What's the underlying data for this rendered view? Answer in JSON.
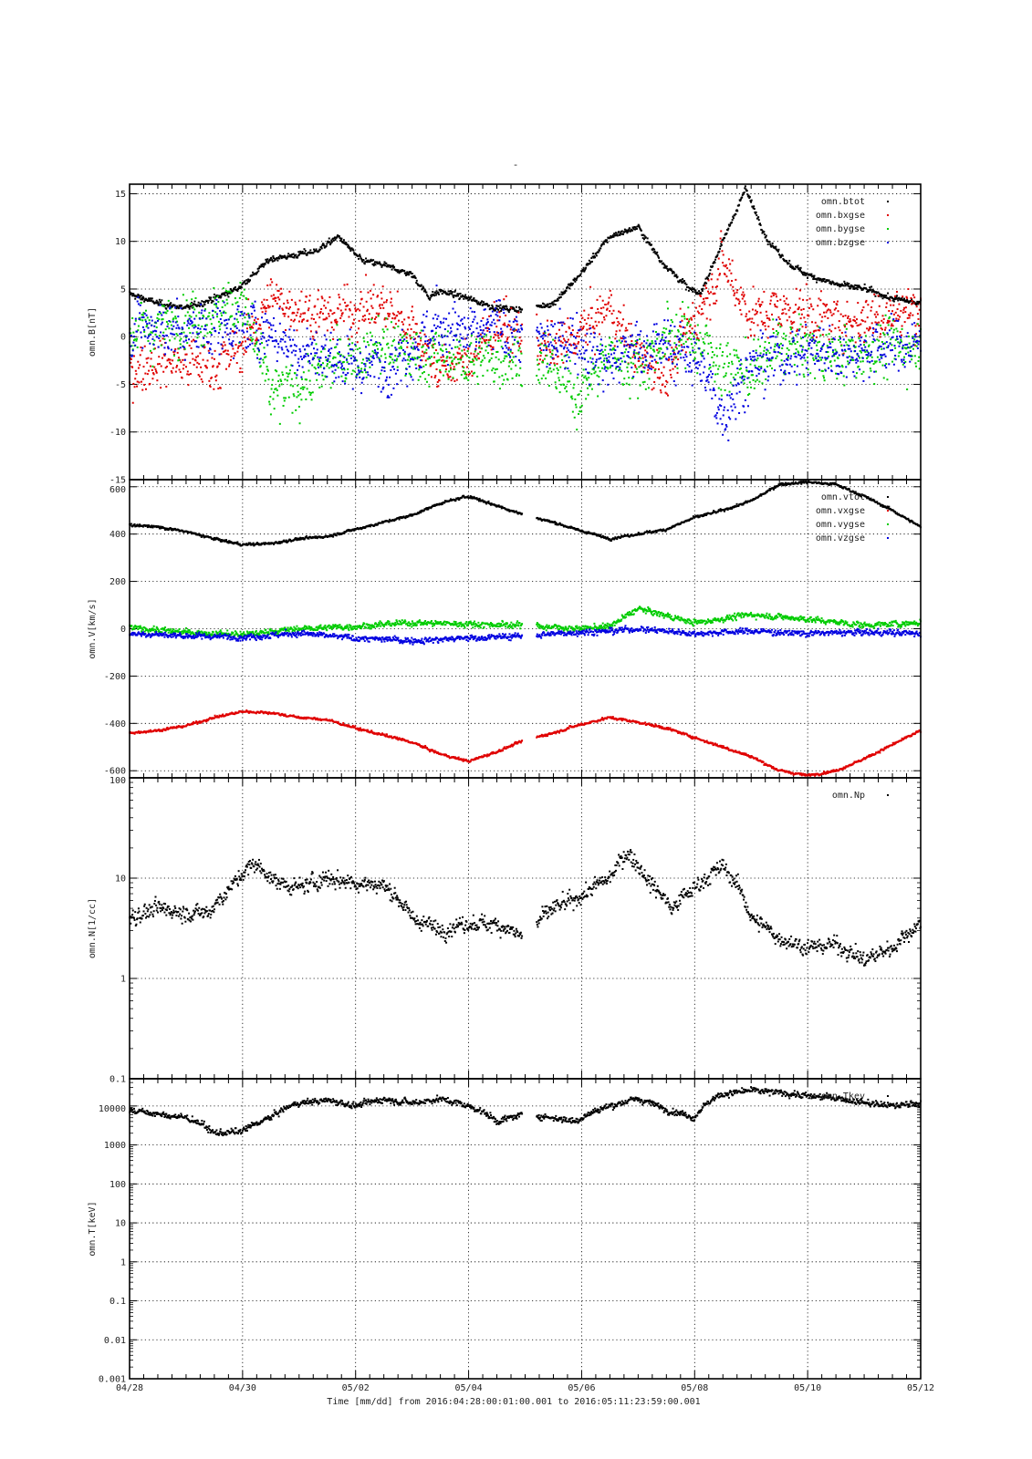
{
  "figure": {
    "top_title": "-",
    "time_label": "Time [mm/dd]  from 2016:04:28:00:01:00.001  to  2016:05:11:23:59:00.001",
    "x_ticks": [
      "04/28",
      "04/30",
      "05/02",
      "05/04",
      "05/06",
      "05/08",
      "05/10",
      "05/12"
    ]
  },
  "colors": {
    "black": "#000000",
    "red": "#e00000",
    "green": "#00cc00",
    "blue": "#0000e0"
  },
  "chart_data": [
    {
      "id": "B",
      "type": "scatter",
      "ylabel": "omn.B[nT]",
      "yscale": "linear",
      "ylim": [
        -15,
        16
      ],
      "yticks": [
        15,
        10,
        5,
        0,
        -5,
        -10,
        -15
      ],
      "xlim_days": [
        0,
        14
      ],
      "gap": [
        13.9,
        14.6
      ],
      "legend": [
        "omn.btot",
        "omn.bxgse",
        "omn.bygse",
        "omn.bzgse"
      ],
      "series": [
        {
          "name": "omn.btot",
          "color": "black",
          "noise": 0.35,
          "x": [
            0,
            0.5,
            1,
            1.5,
            1.9,
            2.1,
            2.5,
            2.9,
            3.3,
            3.7,
            4.1,
            4.5,
            5,
            5.3,
            5.5,
            6,
            6.5,
            7,
            7.5,
            7.9,
            8.5,
            9,
            9.4,
            9.9,
            10.1,
            10.5,
            10.9,
            11.3,
            11.7,
            12,
            12.5,
            13,
            13.5,
            14
          ],
          "y": [
            4.5,
            3.5,
            3.0,
            4.0,
            5.0,
            6.0,
            8.2,
            8.5,
            9.0,
            10.5,
            8.0,
            7.5,
            6.5,
            4.2,
            4.8,
            4.0,
            3.0,
            2.8,
            3.5,
            6.0,
            10.5,
            11.5,
            8.0,
            5.0,
            4.5,
            10.0,
            15.5,
            10.0,
            7.5,
            6.5,
            5.5,
            5.0,
            4.0,
            3.5
          ]
        },
        {
          "name": "omn.bxgse",
          "color": "red",
          "noise": 2.8,
          "x": [
            0,
            0.5,
            1,
            1.5,
            2,
            2.5,
            3,
            3.5,
            4,
            4.5,
            5,
            5.5,
            6,
            6.5,
            7,
            7.5,
            7.9,
            8.5,
            9,
            9.5,
            10,
            10.5,
            11,
            11.5,
            12,
            12.5,
            13,
            13.5,
            14
          ],
          "y": [
            -3.5,
            -2.5,
            -2.5,
            -3.0,
            -1.0,
            4.0,
            3.0,
            2.0,
            3.0,
            3.0,
            1.0,
            -3.5,
            -2.5,
            1.0,
            0.0,
            -1.5,
            0.0,
            3.0,
            -2.0,
            -4.0,
            2.0,
            8.0,
            2.0,
            3.0,
            2.5,
            1.5,
            2.0,
            2.5,
            3.0
          ]
        },
        {
          "name": "omn.bygse",
          "color": "green",
          "noise": 3.2,
          "x": [
            0,
            0.5,
            1,
            1.5,
            2,
            2.5,
            3,
            3.5,
            4,
            4.5,
            5,
            5.5,
            6,
            6.5,
            7,
            7.5,
            7.9,
            8.5,
            9,
            9.5,
            10,
            10.5,
            11,
            11.5,
            12,
            12.5,
            13,
            13.5,
            14
          ],
          "y": [
            0.5,
            1.0,
            2.0,
            2.5,
            3.5,
            -6.0,
            -5.0,
            -3.0,
            -2.0,
            -1.0,
            -2.0,
            -2.0,
            -2.5,
            -2.0,
            -2.0,
            -3.5,
            -6.0,
            -2.0,
            -3.0,
            0.0,
            0.0,
            -3.0,
            -4.0,
            -1.0,
            -1.5,
            -2.0,
            -1.5,
            -1.0,
            -1.0
          ]
        },
        {
          "name": "omn.bzgse",
          "color": "blue",
          "noise": 3.2,
          "x": [
            0,
            0.5,
            1,
            1.5,
            2,
            2.5,
            3,
            3.5,
            4,
            4.5,
            5,
            5.5,
            6,
            6.5,
            7,
            7.5,
            7.9,
            8.5,
            9,
            9.5,
            10,
            10.5,
            11,
            11.5,
            12,
            12.5,
            13,
            13.5,
            14
          ],
          "y": [
            1.0,
            1.0,
            0.5,
            1.0,
            1.0,
            0.5,
            -1.5,
            -2.0,
            -3.0,
            -3.0,
            -1.0,
            1.0,
            0.0,
            1.0,
            0.0,
            -1.0,
            0.0,
            -3.0,
            -1.0,
            -1.0,
            -2.0,
            -8.0,
            -3.0,
            -2.0,
            -1.5,
            -1.5,
            -1.5,
            -1.0,
            -1.0
          ]
        }
      ]
    },
    {
      "id": "V",
      "type": "scatter",
      "ylabel": "omn.V[km/s]",
      "yscale": "linear",
      "ylim": [
        -630,
        630
      ],
      "yticks": [
        600,
        400,
        200,
        0,
        -200,
        -400,
        -600
      ],
      "xlim_days": [
        0,
        14
      ],
      "gap": [
        13.9,
        14.6
      ],
      "legend": [
        "omn.vtot",
        "omn.vxgse",
        "omn.vygse",
        "omn.vzgse"
      ],
      "series": [
        {
          "name": "omn.vtot",
          "color": "black",
          "noise": 6,
          "x": [
            0,
            0.5,
            1,
            1.5,
            2,
            2.5,
            3,
            3.5,
            4,
            4.5,
            5,
            5.5,
            6,
            6.5,
            7,
            7.5,
            7.9,
            8.5,
            9,
            9.5,
            10,
            10.5,
            11,
            11.5,
            12,
            12.5,
            13,
            13.5,
            14
          ],
          "y": [
            440,
            430,
            410,
            380,
            355,
            360,
            380,
            390,
            420,
            450,
            480,
            530,
            560,
            520,
            480,
            450,
            420,
            380,
            400,
            420,
            470,
            500,
            540,
            610,
            620,
            610,
            560,
            500,
            430
          ]
        },
        {
          "name": "omn.vxgse",
          "color": "red",
          "noise": 6,
          "x": [
            0,
            0.5,
            1,
            1.5,
            2,
            2.5,
            3,
            3.5,
            4,
            4.5,
            5,
            5.5,
            6,
            6.5,
            7,
            7.5,
            7.9,
            8.5,
            9,
            9.5,
            10,
            10.5,
            11,
            11.5,
            12,
            12.5,
            13,
            13.5,
            14
          ],
          "y": [
            -440,
            -430,
            -410,
            -375,
            -350,
            -355,
            -375,
            -385,
            -420,
            -450,
            -480,
            -530,
            -560,
            -520,
            -470,
            -440,
            -410,
            -375,
            -395,
            -420,
            -460,
            -500,
            -540,
            -600,
            -620,
            -600,
            -550,
            -490,
            -430
          ]
        },
        {
          "name": "omn.vygse",
          "color": "green",
          "noise": 14,
          "x": [
            0,
            1,
            2,
            3,
            4,
            5,
            6,
            7,
            7.9,
            8.5,
            9,
            10,
            11,
            12,
            13,
            14
          ],
          "y": [
            5,
            -15,
            -25,
            0,
            10,
            25,
            20,
            15,
            0,
            10,
            85,
            25,
            60,
            40,
            15,
            25
          ]
        },
        {
          "name": "omn.vzgse",
          "color": "blue",
          "noise": 14,
          "x": [
            0,
            1,
            2,
            3,
            4,
            5,
            6,
            7,
            7.9,
            8.5,
            9,
            10,
            11,
            12,
            13,
            14
          ],
          "y": [
            -20,
            -30,
            -35,
            -20,
            -40,
            -50,
            -40,
            -30,
            -15,
            -10,
            0,
            -20,
            -10,
            -20,
            -15,
            -20
          ]
        }
      ]
    },
    {
      "id": "N",
      "type": "scatter",
      "ylabel": "omn.N[1/cc]",
      "yscale": "log",
      "ylim": [
        0.1,
        100
      ],
      "yticks": [
        100,
        10,
        1,
        0.1
      ],
      "yticklabels": [
        "100",
        "10",
        "1",
        "0.1"
      ],
      "xlim_days": [
        0,
        14
      ],
      "gap": [
        13.9,
        14.6
      ],
      "legend": [
        "omn.Np"
      ],
      "series": [
        {
          "name": "omn.Np",
          "color": "black",
          "noise": 0.09,
          "x": [
            0,
            0.5,
            1,
            1.4,
            1.8,
            2.2,
            2.6,
            3,
            3.5,
            4,
            4.5,
            5,
            5.5,
            6,
            6.5,
            7,
            7.5,
            7.9,
            8.5,
            8.8,
            9.2,
            9.6,
            10,
            10.5,
            11,
            11.5,
            12,
            12.5,
            13,
            13.5,
            14
          ],
          "y": [
            4.0,
            5.0,
            4.5,
            4.5,
            8.0,
            14.0,
            9.0,
            8.0,
            10.0,
            9.0,
            8.5,
            4.0,
            3.0,
            3.5,
            3.5,
            2.5,
            5.0,
            6.0,
            10.0,
            18.0,
            9.0,
            5.0,
            8.0,
            13.0,
            4.0,
            2.5,
            2.0,
            2.2,
            1.5,
            2.0,
            3.5
          ]
        }
      ]
    },
    {
      "id": "T",
      "type": "scatter",
      "ylabel": "omn.T[keV]",
      "yscale": "log",
      "ylim": [
        0.001,
        50000
      ],
      "yticks": [
        10000,
        1000,
        100,
        10,
        1,
        0.1,
        0.01,
        0.001
      ],
      "yticklabels": [
        "10000",
        "1000",
        "100",
        "10",
        "1",
        "0.1",
        "0.01",
        "0.001"
      ],
      "xlim_days": [
        0,
        14
      ],
      "gap": [
        13.9,
        14.6
      ],
      "legend": [
        "omn.Tkev"
      ],
      "series": [
        {
          "name": "omn.Tkev",
          "color": "black",
          "noise": 0.09,
          "x": [
            0,
            0.5,
            1,
            1.5,
            2,
            2.5,
            3,
            3.5,
            4,
            4.5,
            5,
            5.5,
            6,
            6.5,
            7,
            7.5,
            7.9,
            8.5,
            9,
            9.5,
            10,
            10.5,
            11,
            11.5,
            12,
            12.5,
            13,
            13.5,
            14
          ],
          "y": [
            8000,
            6000,
            5000,
            2000,
            2200,
            5000,
            12000,
            14000,
            10000,
            15000,
            12000,
            15000,
            10000,
            4000,
            6000,
            5000,
            4000,
            10000,
            15000,
            8000,
            5000,
            20000,
            25000,
            22000,
            18000,
            16000,
            12000,
            10000,
            12000
          ]
        }
      ]
    }
  ]
}
